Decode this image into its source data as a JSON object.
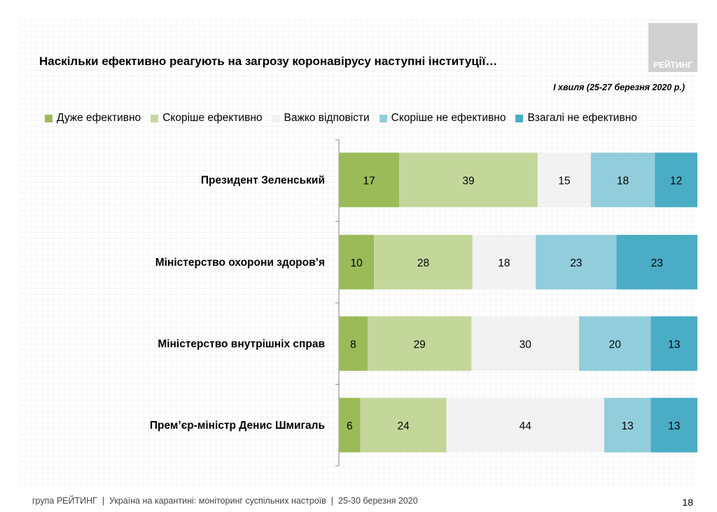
{
  "title": "Наскільки ефективно реагують на загрозу коронавірусу наступні інституції…",
  "subtitle": "І хвиля (25-27 березня 2020 р.)",
  "logo_text": "РЕЙТИНГ",
  "footer": "група РЕЙТИНГ  |  Україна на карантині: моніторинг суспільних настроїв  |  25-30 березня 2020",
  "page_number": "18",
  "chart_data": {
    "type": "bar",
    "orientation": "horizontal",
    "stacked": true,
    "categories": [
      "Президент Зеленський",
      "Міністерство охорони здоров’я",
      "Міністерство внутрішніх справ",
      "Прем’єр-міністр Денис Шмигаль"
    ],
    "series": [
      {
        "name": "Дуже ефективно",
        "color": "#9bbb59",
        "values": [
          17,
          10,
          8,
          6
        ]
      },
      {
        "name": "Скоріше ефективно",
        "color": "#c4d79b",
        "values": [
          39,
          28,
          29,
          24
        ]
      },
      {
        "name": "Важко відповісти",
        "color": "#f2f2f2",
        "values": [
          15,
          18,
          30,
          44
        ]
      },
      {
        "name": "Скоріше не ефективно",
        "color": "#92cddc",
        "values": [
          18,
          23,
          20,
          13
        ]
      },
      {
        "name": "Взагалі не ефективно",
        "color": "#4bacc6",
        "values": [
          12,
          23,
          13,
          13
        ]
      }
    ],
    "legend": "top",
    "data_labels": true,
    "grid": false
  }
}
